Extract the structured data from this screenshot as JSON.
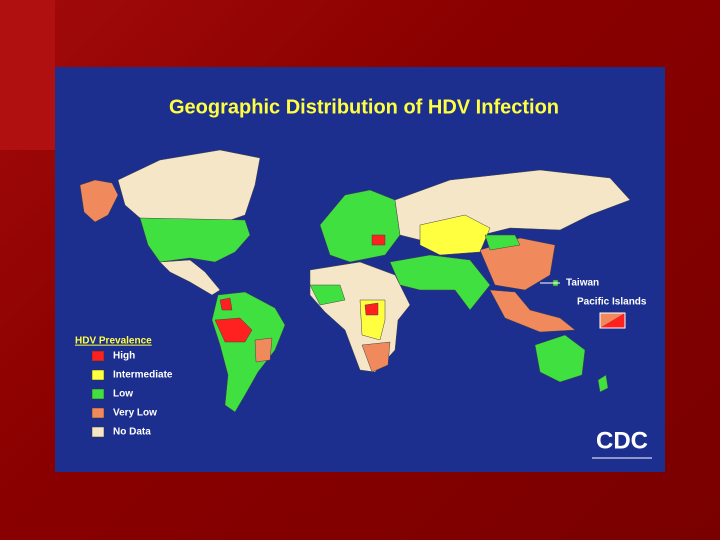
{
  "title": "Geographic Distribution of HDV Infection",
  "legend": {
    "title": "HDV Prevalence",
    "items": [
      "High",
      "Intermediate",
      "Low",
      "Very Low",
      "No Data"
    ]
  },
  "annotations": {
    "taiwan": "Taiwan",
    "pacific_islands": "Pacific Islands"
  },
  "logo": "CDC"
}
